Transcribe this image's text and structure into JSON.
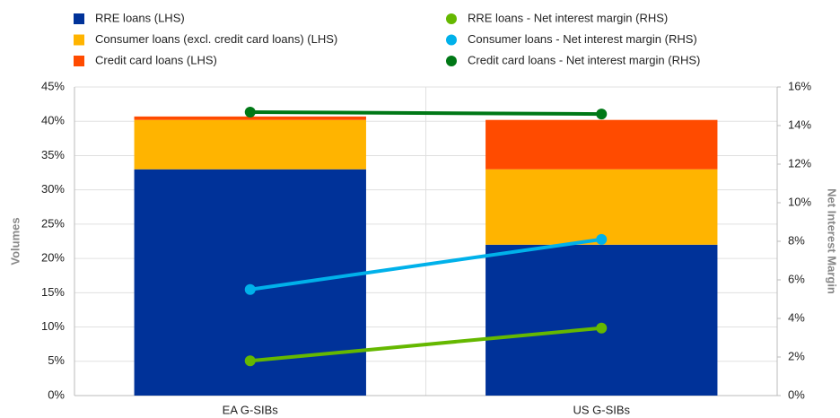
{
  "chart_data": {
    "type": "bar",
    "stacked": true,
    "y_label": "Volumes",
    "y2_label": "Net Interest Margin",
    "categories": [
      "EA G-SIBs",
      "US G-SIBs"
    ],
    "series": [
      {
        "name": "RRE loans (LHS)",
        "color": "#003299",
        "values": [
          33,
          22
        ]
      },
      {
        "name": "Consumer loans (excl. credit card loans) (LHS)",
        "color": "#ffb400",
        "values": [
          7.2,
          11
        ]
      },
      {
        "name": "Credit card loans (LHS)",
        "color": "#ff4b00",
        "values": [
          0.5,
          7.2
        ]
      },
      {
        "name": "RRE loans - Net interest margin (RHS)",
        "color": "#65b800",
        "axis": "y2",
        "values": [
          1.8,
          3.5
        ]
      },
      {
        "name": "Consumer loans - Net interest margin (RHS)",
        "color": "#00b1ea",
        "axis": "y2",
        "values": [
          5.5,
          8.1
        ]
      },
      {
        "name": "Credit card loans - Net interest margin (RHS)",
        "color": "#007816",
        "axis": "y2",
        "values": [
          14.7,
          14.6
        ]
      }
    ],
    "ylim": [
      0,
      45
    ],
    "yticks": [
      {
        "value": 0,
        "label": "0%"
      },
      {
        "value": 5,
        "label": "5%"
      },
      {
        "value": 10,
        "label": "10%"
      },
      {
        "value": 15,
        "label": "15%"
      },
      {
        "value": 20,
        "label": "20%"
      },
      {
        "value": 25,
        "label": "25%"
      },
      {
        "value": 30,
        "label": "30%"
      },
      {
        "value": 35,
        "label": "35%"
      },
      {
        "value": 40,
        "label": "40%"
      },
      {
        "value": 45,
        "label": "45%"
      }
    ],
    "y2lim": [
      0,
      16
    ],
    "y2ticks": [
      {
        "value": 0,
        "label": "0%"
      },
      {
        "value": 2,
        "label": "2%"
      },
      {
        "value": 4,
        "label": "4%"
      },
      {
        "value": 6,
        "label": "6%"
      },
      {
        "value": 8,
        "label": "8%"
      },
      {
        "value": 10,
        "label": "10%"
      },
      {
        "value": 12,
        "label": "12%"
      },
      {
        "value": 14,
        "label": "14%"
      },
      {
        "value": 16,
        "label": "16%"
      }
    ],
    "grid": true
  }
}
